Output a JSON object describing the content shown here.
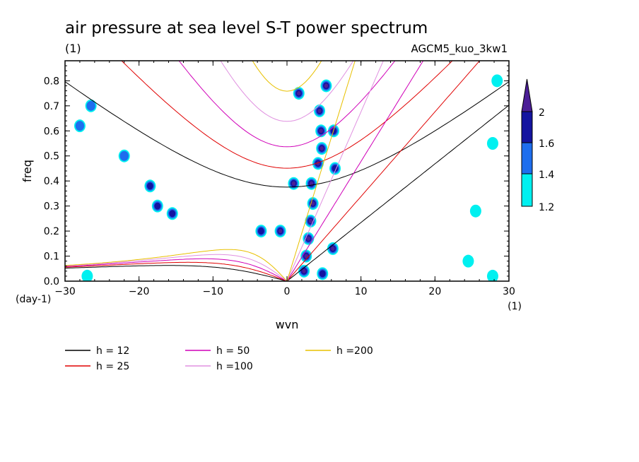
{
  "title": "air pressure at sea level S-T power spectrum",
  "subtitle_units": "(1)",
  "run_label": "AGCM5_kuo_3kw1",
  "chart_data": {
    "type": "heatmap",
    "title": "air pressure at sea level S-T power spectrum",
    "xlabel": "wvn",
    "xunits": "(1)",
    "ylabel": "freq",
    "yunits": "(day-1)",
    "xlim": [
      -30,
      30
    ],
    "ylim": [
      0,
      0.88
    ],
    "xticks": [
      -30,
      -20,
      -10,
      0,
      10,
      20,
      30
    ],
    "yticks": [
      0.0,
      0.1,
      0.2,
      0.3,
      0.4,
      0.5,
      0.6,
      0.7,
      0.8
    ],
    "ytick_labels": [
      "0.0",
      "0.1",
      "0.2",
      "0.3",
      "0.4",
      "0.5",
      "0.6",
      "0.7",
      "0.8"
    ],
    "colorbar": {
      "levels": [
        1.2,
        1.4,
        1.6,
        2
      ],
      "labels": [
        "1.2",
        "1.4",
        "1.6",
        "2"
      ],
      "colors": [
        "#00f0f0",
        "#1e6eee",
        "#1414a0",
        "#4b1e96"
      ]
    },
    "dispersion_curves": [
      {
        "name": "h = 12",
        "h": 12,
        "color": "#000000"
      },
      {
        "name": "h = 25",
        "h": 25,
        "color": "#e00000"
      },
      {
        "name": "h = 50",
        "h": 50,
        "color": "#d000b8"
      },
      {
        "name": "h =100",
        "h": 100,
        "color": "#e090e0"
      },
      {
        "name": "h =200",
        "h": 200,
        "color": "#e8c000"
      }
    ],
    "contour_regions": [
      {
        "x": 2.3,
        "y": 0.04,
        "level": 2
      },
      {
        "x": 2.6,
        "y": 0.1,
        "level": 2
      },
      {
        "x": 2.9,
        "y": 0.17,
        "level": 2
      },
      {
        "x": 3.2,
        "y": 0.24,
        "level": 2
      },
      {
        "x": 3.5,
        "y": 0.31,
        "level": 2
      },
      {
        "x": 3.3,
        "y": 0.39,
        "level": 2
      },
      {
        "x": 0.9,
        "y": 0.39,
        "level": 2
      },
      {
        "x": 4.2,
        "y": 0.47,
        "level": 2
      },
      {
        "x": 4.7,
        "y": 0.53,
        "level": 2
      },
      {
        "x": 4.6,
        "y": 0.6,
        "level": 2
      },
      {
        "x": 4.4,
        "y": 0.68,
        "level": 2
      },
      {
        "x": 1.6,
        "y": 0.75,
        "level": 2
      },
      {
        "x": 5.3,
        "y": 0.78,
        "level": 2
      },
      {
        "x": -0.9,
        "y": 0.2,
        "level": 2
      },
      {
        "x": 6.2,
        "y": 0.13,
        "level": 2
      },
      {
        "x": 4.8,
        "y": 0.03,
        "level": 1.6
      },
      {
        "x": 6.5,
        "y": 0.45,
        "level": 1.6
      },
      {
        "x": 6.3,
        "y": 0.6,
        "level": 1.6
      },
      {
        "x": -17.5,
        "y": 0.3,
        "level": 1.6
      },
      {
        "x": -15.5,
        "y": 0.27,
        "level": 1.6
      },
      {
        "x": -18.5,
        "y": 0.38,
        "level": 1.6
      },
      {
        "x": -3.5,
        "y": 0.2,
        "level": 1.6
      },
      {
        "x": -28,
        "y": 0.62,
        "level": 1.4
      },
      {
        "x": -26.5,
        "y": 0.7,
        "level": 1.4
      },
      {
        "x": -22.0,
        "y": 0.5,
        "level": 1.4
      },
      {
        "x": -27,
        "y": 0.02,
        "level": 1.2
      },
      {
        "x": 27.8,
        "y": 0.02,
        "level": 1.2
      },
      {
        "x": 27.8,
        "y": 0.55,
        "level": 1.2
      },
      {
        "x": 28.4,
        "y": 0.8,
        "level": 1.2
      },
      {
        "x": 25.5,
        "y": 0.28,
        "level": 1.2
      },
      {
        "x": 24.5,
        "y": 0.08,
        "level": 1.2
      }
    ]
  }
}
